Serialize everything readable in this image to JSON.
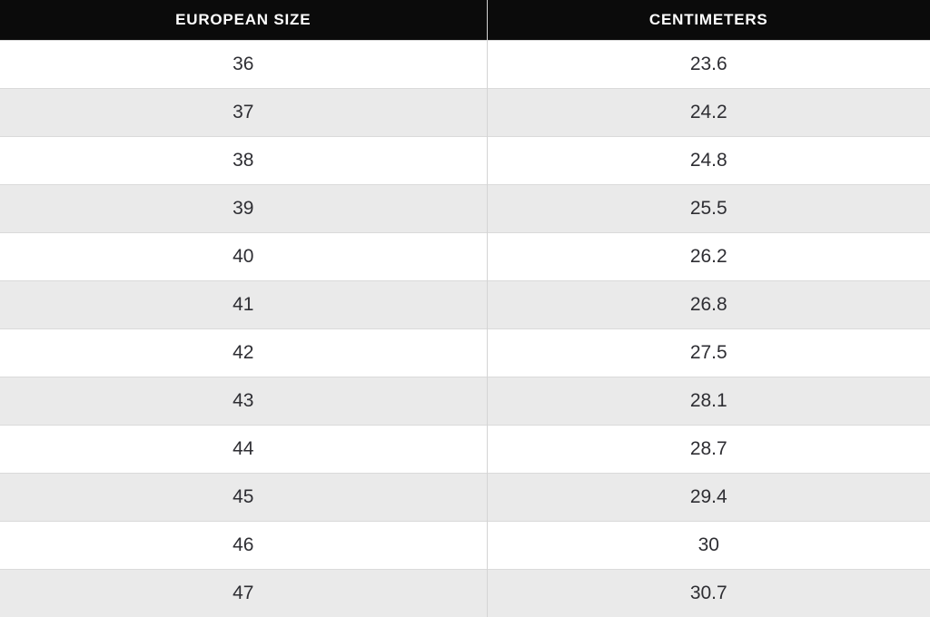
{
  "page": {
    "description": "European shoe size to centimeters conversion table"
  },
  "colors": {
    "header_bg": "#0b0b0b",
    "header_text": "#ffffff",
    "row_bg": "#ffffff",
    "row_alt_bg": "#eaeaea",
    "row_line": "#dadada",
    "divider": "#d4d4d4",
    "cell_text": "#2e2e33"
  },
  "table": {
    "columns": [
      {
        "id": "european_size",
        "label": "EUROPEAN SIZE"
      },
      {
        "id": "centimeters",
        "label": "CENTIMETERS"
      }
    ],
    "rows": [
      {
        "size": "36",
        "cm": "23.6"
      },
      {
        "size": "37",
        "cm": "24.2"
      },
      {
        "size": "38",
        "cm": "24.8"
      },
      {
        "size": "39",
        "cm": "25.5"
      },
      {
        "size": "40",
        "cm": "26.2"
      },
      {
        "size": "41",
        "cm": "26.8"
      },
      {
        "size": "42",
        "cm": "27.5"
      },
      {
        "size": "43",
        "cm": "28.1"
      },
      {
        "size": "44",
        "cm": "28.7"
      },
      {
        "size": "45",
        "cm": "29.4"
      },
      {
        "size": "46",
        "cm": "30"
      },
      {
        "size": "47",
        "cm": "30.7"
      }
    ]
  },
  "chart_data": {
    "type": "table",
    "title": "",
    "columns": [
      "EUROPEAN SIZE",
      "CENTIMETERS"
    ],
    "rows": [
      [
        36,
        23.6
      ],
      [
        37,
        24.2
      ],
      [
        38,
        24.8
      ],
      [
        39,
        25.5
      ],
      [
        40,
        26.2
      ],
      [
        41,
        26.8
      ],
      [
        42,
        27.5
      ],
      [
        43,
        28.1
      ],
      [
        44,
        28.7
      ],
      [
        45,
        29.4
      ],
      [
        46,
        30
      ],
      [
        47,
        30.7
      ]
    ]
  }
}
